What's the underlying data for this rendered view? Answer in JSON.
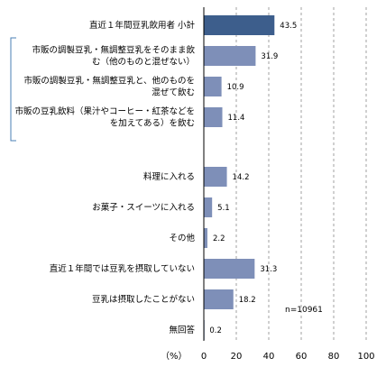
{
  "chart_data": {
    "type": "bar",
    "orientation": "horizontal",
    "categories": [
      [
        "直近１年間豆乳飲用者 小計"
      ],
      [
        "市販の調製豆乳・無調整豆乳をそのまま飲",
        "む（他のものと混ぜない）"
      ],
      [
        "市販の調製豆乳・無調整豆乳と、他のものを",
        "混ぜて飲む"
      ],
      [
        "市販の豆乳飲料（果汁やコーヒー・紅茶などを",
        "を加えてある）を飲む"
      ],
      [
        "料理に入れる"
      ],
      [
        "お菓子・スイーツに入れる"
      ],
      [
        "その他"
      ],
      [
        "直近１年間では豆乳を摂取していない"
      ],
      [
        "豆乳は摂取したことがない"
      ],
      [
        "無回答"
      ]
    ],
    "values": [
      43.5,
      31.9,
      10.9,
      11.4,
      14.2,
      5.1,
      2.2,
      31.3,
      18.2,
      0.2
    ],
    "value_labels": [
      "43.5",
      "31.9",
      "10.9",
      "11.4",
      "14.2",
      "5.1",
      "2.2",
      "31.3",
      "18.2",
      "0.2"
    ],
    "highlight_index": 0,
    "xlim": [
      0,
      100
    ],
    "xticks": [
      "0",
      "20",
      "40",
      "60",
      "80",
      "100"
    ],
    "xunit_label": "（%）",
    "annotation": "n=10961",
    "grid": "vertical dashed",
    "colors": {
      "primary": "#3D5E8C",
      "secondary": "#7E8FB8",
      "bracket": "#4A7FB5"
    }
  }
}
